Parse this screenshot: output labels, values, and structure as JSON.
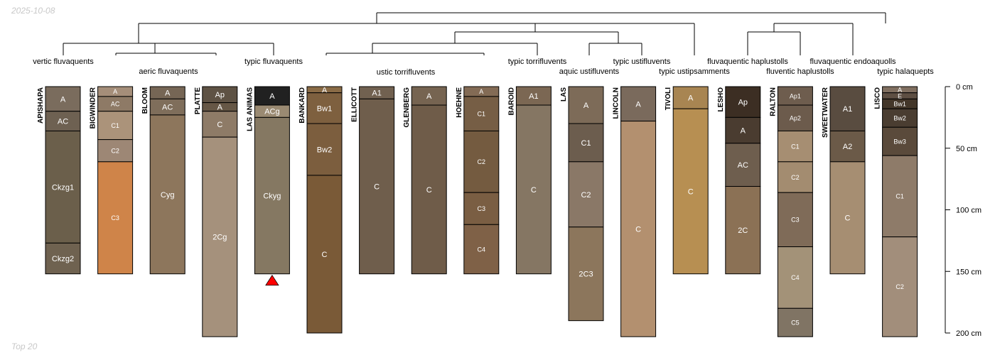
{
  "header": {
    "date": "2025-10-08"
  },
  "footer": {
    "note": "Top 20"
  },
  "chart_data": {
    "type": "soil-profile-sketch",
    "depth_unit": "cm",
    "depth_axis": {
      "range": [
        0,
        200
      ],
      "ticks": [
        0,
        50,
        100,
        150,
        200
      ],
      "labels": [
        "0 cm",
        "50 cm",
        "100 cm",
        "150 cm",
        "200 cm"
      ]
    },
    "dendrogram_labels": [
      "vertic fluvaquents",
      "aeric fluvaquents",
      "typic fluvaquents",
      "ustic torrifluvents",
      "typic torrifluvents",
      "aquic ustifluvents",
      "typic ustifluvents",
      "typic ustipsamments",
      "fluvaquentic haplustolls",
      "fluventic haplustolls",
      "fluvaquentic endoaquolls",
      "typic halaquepts"
    ],
    "profiles": [
      {
        "name": "APISHAPA",
        "horizons": [
          {
            "name": "A",
            "top": 0,
            "bottom": 20,
            "color": "#7A6C5D"
          },
          {
            "name": "AC",
            "top": 20,
            "bottom": 36,
            "color": "#6E6152"
          },
          {
            "name": "Ckzg1",
            "top": 36,
            "bottom": 127,
            "color": "#6B5F4B"
          },
          {
            "name": "Ckzg2",
            "top": 127,
            "bottom": 152,
            "color": "#6F6250"
          }
        ]
      },
      {
        "name": "BIGWINDER",
        "horizons": [
          {
            "name": "A",
            "top": 0,
            "bottom": 8,
            "color": "#A58E79"
          },
          {
            "name": "AC",
            "top": 8,
            "bottom": 20,
            "color": "#8E7A66"
          },
          {
            "name": "C1",
            "top": 20,
            "bottom": 43,
            "color": "#AB937A"
          },
          {
            "name": "C2",
            "top": 43,
            "bottom": 61,
            "color": "#9D8775"
          },
          {
            "name": "C3",
            "top": 61,
            "bottom": 152,
            "color": "#CF8449"
          }
        ]
      },
      {
        "name": "BLOOM",
        "horizons": [
          {
            "name": "A",
            "top": 0,
            "bottom": 10,
            "color": "#766655"
          },
          {
            "name": "AC",
            "top": 10,
            "bottom": 23,
            "color": "#7F6E5B"
          },
          {
            "name": "Cyg",
            "top": 23,
            "bottom": 152,
            "color": "#8D765C"
          }
        ]
      },
      {
        "name": "PLATTE",
        "horizons": [
          {
            "name": "Ap",
            "top": 0,
            "bottom": 13,
            "color": "#5E5244"
          },
          {
            "name": "A",
            "top": 13,
            "bottom": 20,
            "color": "#665746"
          },
          {
            "name": "C",
            "top": 20,
            "bottom": 41,
            "color": "#8E7B67"
          },
          {
            "name": "2Cg",
            "top": 41,
            "bottom": 203,
            "color": "#A5917C"
          }
        ]
      },
      {
        "name": "LAS ANIMAS",
        "truncated": true,
        "horizons": [
          {
            "name": "A",
            "top": 0,
            "bottom": 15,
            "color": "#212121"
          },
          {
            "name": "ACg",
            "top": 15,
            "bottom": 25,
            "color": "#9A8A72"
          },
          {
            "name": "Ckyg",
            "top": 25,
            "bottom": 152,
            "color": "#857862"
          }
        ]
      },
      {
        "name": "BANKARD",
        "horizons": [
          {
            "name": "A",
            "top": 0,
            "bottom": 5,
            "color": "#8A6B46"
          },
          {
            "name": "Bw1",
            "top": 5,
            "bottom": 30,
            "color": "#7E603F"
          },
          {
            "name": "Bw2",
            "top": 30,
            "bottom": 72,
            "color": "#7C5E3E"
          },
          {
            "name": "C",
            "top": 72,
            "bottom": 200,
            "color": "#7A5A37"
          }
        ]
      },
      {
        "name": "ELLICOTT",
        "horizons": [
          {
            "name": "A1",
            "top": 0,
            "bottom": 10,
            "color": "#716150"
          },
          {
            "name": "C",
            "top": 10,
            "bottom": 152,
            "color": "#6F5E4C"
          }
        ]
      },
      {
        "name": "GLENBERG",
        "horizons": [
          {
            "name": "A",
            "top": 0,
            "bottom": 15,
            "color": "#766451"
          },
          {
            "name": "C",
            "top": 15,
            "bottom": 152,
            "color": "#6F5C49"
          }
        ]
      },
      {
        "name": "HOEHNE",
        "horizons": [
          {
            "name": "A",
            "top": 0,
            "bottom": 8,
            "color": "#836B55"
          },
          {
            "name": "C1",
            "top": 8,
            "bottom": 36,
            "color": "#765E45"
          },
          {
            "name": "C2",
            "top": 36,
            "bottom": 86,
            "color": "#745B40"
          },
          {
            "name": "C3",
            "top": 86,
            "bottom": 112,
            "color": "#7A5E43"
          },
          {
            "name": "C4",
            "top": 112,
            "bottom": 152,
            "color": "#7F6147"
          }
        ]
      },
      {
        "name": "BAROID",
        "horizons": [
          {
            "name": "A1",
            "top": 0,
            "bottom": 15,
            "color": "#7B6753"
          },
          {
            "name": "C",
            "top": 15,
            "bottom": 152,
            "color": "#857663"
          }
        ]
      },
      {
        "name": "LAS",
        "horizons": [
          {
            "name": "A",
            "top": 0,
            "bottom": 30,
            "color": "#7D6B58"
          },
          {
            "name": "C1",
            "top": 30,
            "bottom": 61,
            "color": "#6C5D4E"
          },
          {
            "name": "C2",
            "top": 61,
            "bottom": 114,
            "color": "#8A7867"
          },
          {
            "name": "2C3",
            "top": 114,
            "bottom": 190,
            "color": "#8C765C"
          }
        ]
      },
      {
        "name": "LINCOLN",
        "horizons": [
          {
            "name": "A",
            "top": 0,
            "bottom": 28,
            "color": "#7A6A5C"
          },
          {
            "name": "C",
            "top": 28,
            "bottom": 203,
            "color": "#B3906F"
          }
        ]
      },
      {
        "name": "TIVOLI",
        "horizons": [
          {
            "name": "A",
            "top": 0,
            "bottom": 18,
            "color": "#A88552"
          },
          {
            "name": "C",
            "top": 18,
            "bottom": 152,
            "color": "#B78F52"
          }
        ]
      },
      {
        "name": "LESHO",
        "horizons": [
          {
            "name": "Ap",
            "top": 0,
            "bottom": 25,
            "color": "#3C2E23"
          },
          {
            "name": "A",
            "top": 25,
            "bottom": 46,
            "color": "#4A3C30"
          },
          {
            "name": "AC",
            "top": 46,
            "bottom": 81,
            "color": "#6E5E4E"
          },
          {
            "name": "2C",
            "top": 81,
            "bottom": 152,
            "color": "#8B7155"
          }
        ]
      },
      {
        "name": "RALTON",
        "horizons": [
          {
            "name": "Ap1",
            "top": 0,
            "bottom": 15,
            "color": "#6E5D4E"
          },
          {
            "name": "Ap2",
            "top": 15,
            "bottom": 36,
            "color": "#6C5B4C"
          },
          {
            "name": "C1",
            "top": 36,
            "bottom": 61,
            "color": "#A68E72"
          },
          {
            "name": "C2",
            "top": 61,
            "bottom": 86,
            "color": "#A38C70"
          },
          {
            "name": "C3",
            "top": 86,
            "bottom": 130,
            "color": "#7F6B58"
          },
          {
            "name": "C4",
            "top": 130,
            "bottom": 180,
            "color": "#A39278"
          },
          {
            "name": "C5",
            "top": 180,
            "bottom": 203,
            "color": "#807464"
          }
        ]
      },
      {
        "name": "SWEETWATER",
        "horizons": [
          {
            "name": "A1",
            "top": 0,
            "bottom": 36,
            "color": "#594C40"
          },
          {
            "name": "A2",
            "top": 36,
            "bottom": 61,
            "color": "#6B5A48"
          },
          {
            "name": "C",
            "top": 61,
            "bottom": 152,
            "color": "#A68E72"
          }
        ]
      },
      {
        "name": "LISCO",
        "horizons": [
          {
            "name": "A",
            "top": 0,
            "bottom": 5,
            "color": "#806F60"
          },
          {
            "name": "E",
            "top": 5,
            "bottom": 10,
            "color": "#5E4F43"
          },
          {
            "name": "Bw1",
            "top": 10,
            "bottom": 18,
            "color": "#433629"
          },
          {
            "name": "Bw2",
            "top": 18,
            "bottom": 33,
            "color": "#4A3D31"
          },
          {
            "name": "Bw3",
            "top": 33,
            "bottom": 56,
            "color": "#5A4A3B"
          },
          {
            "name": "C1",
            "top": 56,
            "bottom": 122,
            "color": "#8E7B69"
          },
          {
            "name": "C2",
            "top": 122,
            "bottom": 203,
            "color": "#A28E7B"
          }
        ]
      }
    ]
  }
}
